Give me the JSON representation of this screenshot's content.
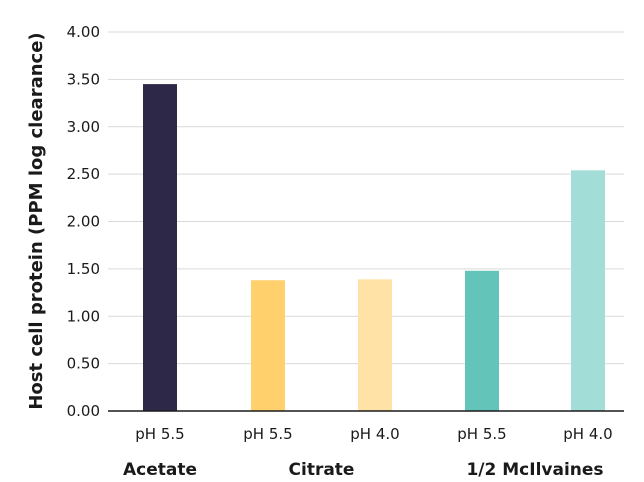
{
  "chart_data": {
    "type": "bar",
    "ylabel": "Host cell protein (PPM log clearance)",
    "xlabel": "",
    "ylim": [
      0,
      4
    ],
    "y_ticks": [
      "0.00",
      "0.50",
      "1.00",
      "1.50",
      "2.00",
      "2.50",
      "3.00",
      "3.50",
      "4.00"
    ],
    "y_tick_values": [
      0,
      0.5,
      1.0,
      1.5,
      2.0,
      2.5,
      3.0,
      3.5,
      4.0
    ],
    "grid": true,
    "legend": "none",
    "categories": [
      "pH 5.5",
      "pH 5.5",
      "pH 4.0",
      "pH 5.5",
      "pH 4.0"
    ],
    "values": [
      3.45,
      1.38,
      1.39,
      1.48,
      2.54
    ],
    "colors": [
      "#2d2848",
      "#ffd06b",
      "#ffe3a6",
      "#63c5ba",
      "#a3ddd7"
    ],
    "groups": [
      {
        "label": "Acetate",
        "bars": [
          0
        ]
      },
      {
        "label": "Citrate",
        "bars": [
          1,
          2
        ]
      },
      {
        "label": "1/2 McIlvaines",
        "bars": [
          3,
          4
        ]
      }
    ]
  }
}
